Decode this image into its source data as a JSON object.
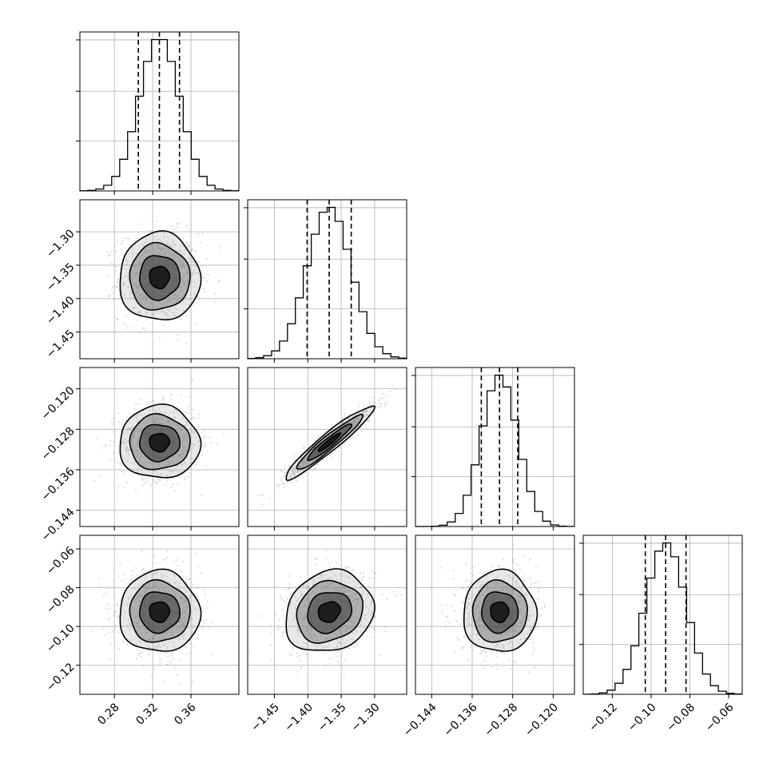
{
  "chart_data": {
    "type": "corner",
    "title": "",
    "parameters": [
      {
        "index": 0,
        "mean": 0.327,
        "sigma": 0.021,
        "range": [
          0.244,
          0.41
        ],
        "ticks": [
          0.28,
          0.32,
          0.36
        ],
        "tick_labels": [
          "0.28",
          "0.32",
          "0.36"
        ],
        "quantiles": [
          0.305,
          0.327,
          0.348
        ]
      },
      {
        "index": 1,
        "mean": -1.368,
        "sigma": 0.033,
        "range": [
          -1.49,
          -1.252
        ],
        "ticks": [
          -1.45,
          -1.4,
          -1.35,
          -1.3
        ],
        "tick_labels": [
          "−1.45",
          "−1.40",
          "−1.35",
          "−1.30"
        ],
        "quantiles": [
          -1.401,
          -1.368,
          -1.335
        ]
      },
      {
        "index": 2,
        "mean": -0.1306,
        "sigma": 0.0036,
        "range": [
          -0.1472,
          -0.1158
        ],
        "ticks": [
          -0.144,
          -0.136,
          -0.128,
          -0.12
        ],
        "tick_labels": [
          "−0.144",
          "−0.136",
          "−0.128",
          "−0.120"
        ],
        "quantiles": [
          -0.1342,
          -0.1306,
          -0.127
        ]
      },
      {
        "index": 3,
        "mean": -0.0925,
        "sigma": 0.0105,
        "range": [
          -0.135,
          -0.053
        ],
        "ticks": [
          -0.12,
          -0.1,
          -0.08,
          -0.06
        ],
        "tick_labels": [
          "−0.12",
          "−0.10",
          "−0.08",
          "−0.06"
        ],
        "quantiles": [
          -0.103,
          -0.0925,
          -0.082
        ]
      }
    ],
    "correlations": [
      {
        "pair": [
          1,
          0
        ],
        "rho": 0.0
      },
      {
        "pair": [
          2,
          0
        ],
        "rho": 0.0
      },
      {
        "pair": [
          2,
          1
        ],
        "rho": 0.95
      },
      {
        "pair": [
          3,
          0
        ],
        "rho": 0.0
      },
      {
        "pair": [
          3,
          1
        ],
        "rho": 0.15
      },
      {
        "pair": [
          3,
          2
        ],
        "rho": 0.0
      }
    ],
    "histogram_bins": 20,
    "contour_levels_sigma": [
      0.5,
      1.0,
      1.5,
      2.0
    ],
    "grid": true,
    "colors": {
      "points": "#9a9a9a",
      "density": "#000000",
      "lines": "#000000"
    }
  }
}
